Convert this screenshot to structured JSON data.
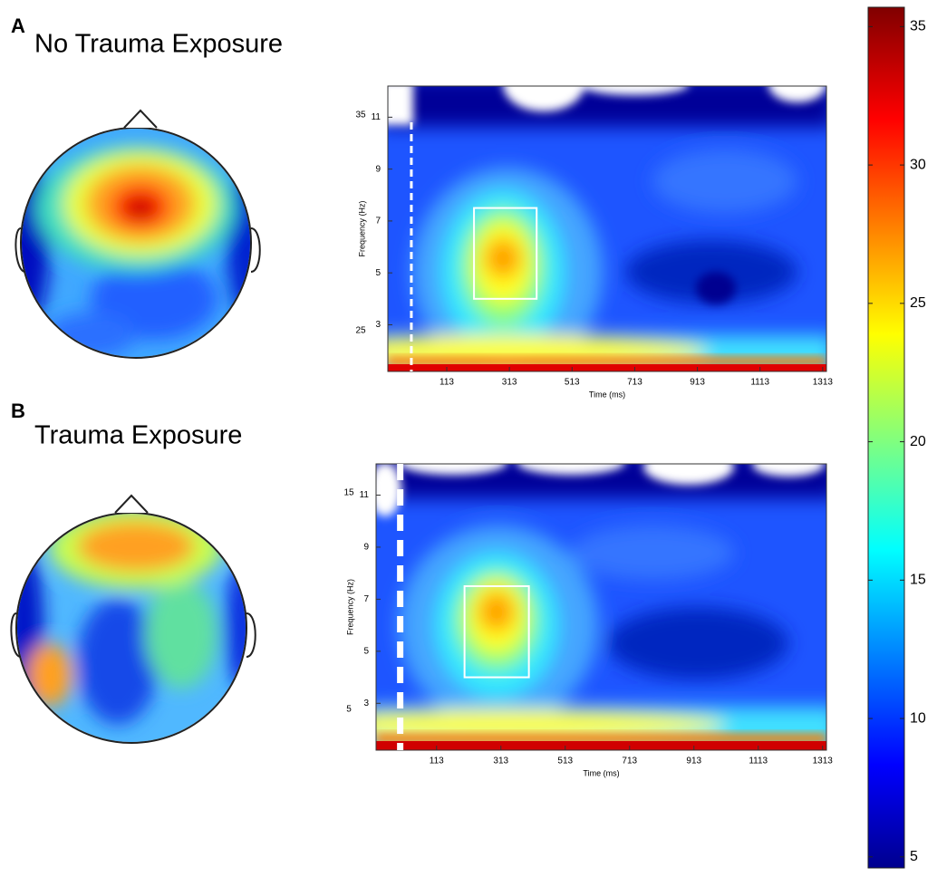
{
  "colorbar": {
    "lim": [
      4.6,
      35.7
    ],
    "ticks": [
      5,
      10,
      15,
      20,
      25,
      30,
      35
    ]
  },
  "panels": [
    {
      "label": "A",
      "title": "No Trauma Exposure",
      "tf": {
        "xlabel": "Time (ms)",
        "ylabel": "Frequency (Hz)",
        "xlim": [
          -75,
          1325
        ],
        "ylim": [
          1.2,
          12.2
        ],
        "xticks": [
          113,
          313,
          513,
          713,
          913,
          1113,
          1313
        ],
        "yticks": [
          3,
          5,
          7,
          9,
          11
        ],
        "onset": 0,
        "roi": {
          "x": [
            200,
            400
          ],
          "y": [
            4,
            7.5
          ]
        },
        "stray_labels": [
          "35",
          "25"
        ]
      }
    },
    {
      "label": "B",
      "title": "Trauma Exposure",
      "tf": {
        "xlabel": "Time (ms)",
        "ylabel": "Frequency (Hz)",
        "xlim": [
          -75,
          1325
        ],
        "ylim": [
          1.2,
          12.2
        ],
        "xticks": [
          113,
          313,
          513,
          713,
          913,
          1113,
          1313
        ],
        "yticks": [
          3,
          5,
          7,
          9,
          11
        ],
        "onset": 0,
        "roi": {
          "x": [
            200,
            400
          ],
          "y": [
            4,
            7.5
          ]
        },
        "stray_labels": [
          "15",
          "5"
        ]
      }
    }
  ]
}
